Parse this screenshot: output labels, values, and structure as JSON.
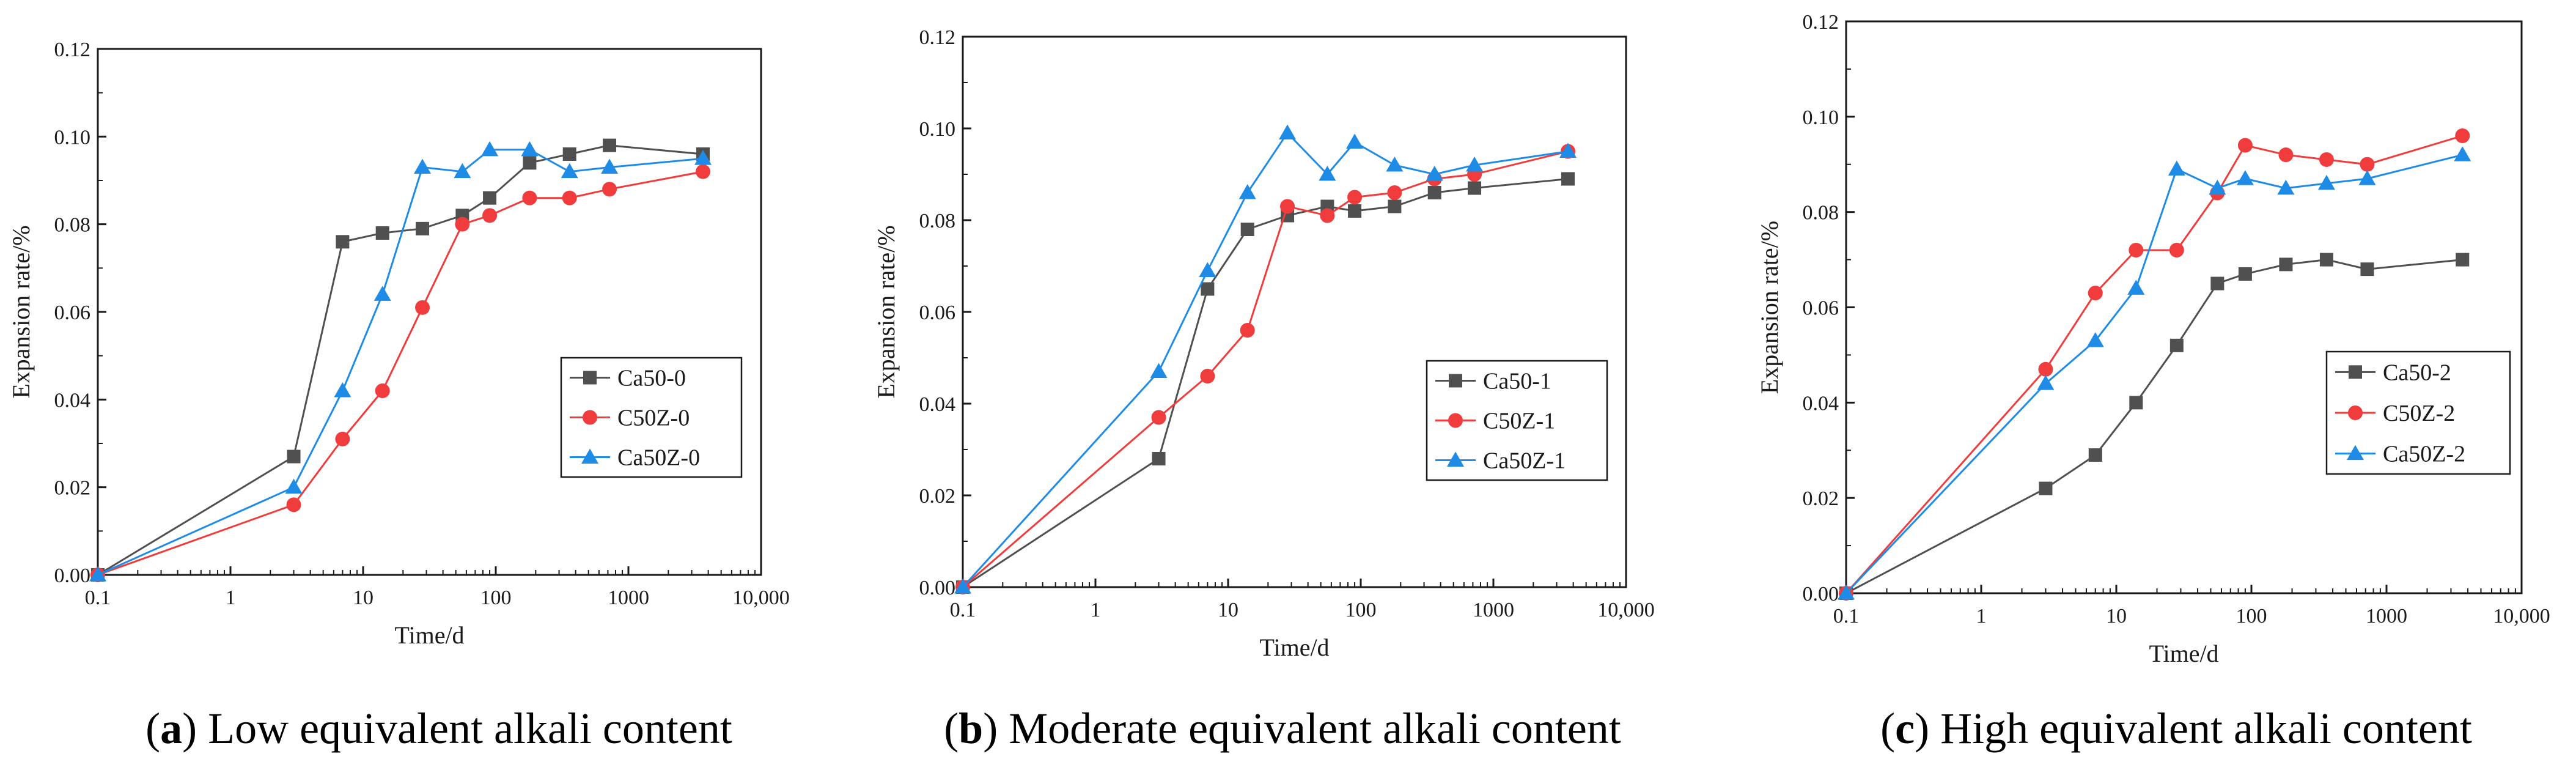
{
  "colors": {
    "series_1": "#505050",
    "series_2": "#f03c3c",
    "series_3": "#1e8ce6",
    "axis": "#1a1a1a"
  },
  "chart_data": [
    {
      "type": "line",
      "xscale": "log",
      "xlim": [
        0.1,
        10000
      ],
      "ylim": [
        0,
        0.12
      ],
      "xticks": [
        "0.1",
        "1",
        "10",
        "100",
        "1000",
        "10,000"
      ],
      "yticks": [
        "0.00",
        "0.02",
        "0.04",
        "0.06",
        "0.08",
        "0.10",
        "0.12"
      ],
      "xlabel": "Time/d",
      "ylabel": "Expansion rate/%",
      "legend_position": "center-right",
      "caption_letter": "a",
      "caption_text": "Low equivalent alkali content",
      "series": [
        {
          "name": "Ca50-0",
          "marker": "square",
          "x": [
            0.1,
            3,
            7,
            14,
            28,
            56,
            90,
            180,
            360,
            720,
            3650
          ],
          "y": [
            0,
            0.027,
            0.076,
            0.078,
            0.079,
            0.082,
            0.086,
            0.094,
            0.096,
            0.098,
            0.096
          ]
        },
        {
          "name": "C50Z-0",
          "marker": "circle",
          "x": [
            0.1,
            3,
            7,
            14,
            28,
            56,
            90,
            180,
            360,
            720,
            3650
          ],
          "y": [
            0,
            0.016,
            0.031,
            0.042,
            0.061,
            0.08,
            0.082,
            0.086,
            0.086,
            0.088,
            0.092
          ]
        },
        {
          "name": "Ca50Z-0",
          "marker": "triangle",
          "x": [
            0.1,
            3,
            7,
            14,
            28,
            56,
            90,
            180,
            360,
            720,
            3650
          ],
          "y": [
            0,
            0.02,
            0.042,
            0.064,
            0.093,
            0.092,
            0.097,
            0.097,
            0.092,
            0.093,
            0.095
          ]
        }
      ]
    },
    {
      "type": "line",
      "xscale": "log",
      "xlim": [
        0.1,
        10000
      ],
      "ylim": [
        0,
        0.12
      ],
      "xticks": [
        "0.1",
        "1",
        "10",
        "100",
        "1000",
        "10,000"
      ],
      "yticks": [
        "0.00",
        "0.02",
        "0.04",
        "0.06",
        "0.08",
        "0.10",
        "0.12"
      ],
      "xlabel": "Time/d",
      "ylabel": "Expansion rate/%",
      "legend_position": "lower-right",
      "caption_letter": "b",
      "caption_text": "Moderate equivalent alkali content",
      "series": [
        {
          "name": "Ca50-1",
          "marker": "square",
          "x": [
            0.1,
            3,
            7,
            14,
            28,
            56,
            90,
            180,
            360,
            720,
            3650
          ],
          "y": [
            0,
            0.028,
            0.065,
            0.078,
            0.081,
            0.083,
            0.082,
            0.083,
            0.086,
            0.087,
            0.089
          ]
        },
        {
          "name": "C50Z-1",
          "marker": "circle",
          "x": [
            0.1,
            3,
            7,
            14,
            28,
            56,
            90,
            180,
            360,
            720,
            3650
          ],
          "y": [
            0,
            0.037,
            0.046,
            0.056,
            0.083,
            0.081,
            0.085,
            0.086,
            0.089,
            0.09,
            0.095
          ]
        },
        {
          "name": "Ca50Z-1",
          "marker": "triangle",
          "x": [
            0.1,
            3,
            7,
            14,
            28,
            56,
            90,
            180,
            360,
            720,
            3650
          ],
          "y": [
            0,
            0.047,
            0.069,
            0.086,
            0.099,
            0.09,
            0.097,
            0.092,
            0.09,
            0.092,
            0.095
          ]
        }
      ]
    },
    {
      "type": "line",
      "xscale": "log",
      "xlim": [
        0.1,
        10000
      ],
      "ylim": [
        0,
        0.12
      ],
      "xticks": [
        "0.1",
        "1",
        "10",
        "100",
        "1000",
        "10,000"
      ],
      "yticks": [
        "0.00",
        "0.02",
        "0.04",
        "0.06",
        "0.08",
        "0.10",
        "0.12"
      ],
      "xlabel": "Time/d",
      "ylabel": "Expansion rate/%",
      "legend_position": "lower-right",
      "caption_letter": "c",
      "caption_text": "High equivalent alkali content",
      "series": [
        {
          "name": "Ca50-2",
          "marker": "square",
          "x": [
            0.1,
            3,
            7,
            14,
            28,
            56,
            90,
            180,
            360,
            720,
            3650
          ],
          "y": [
            0,
            0.022,
            0.029,
            0.04,
            0.052,
            0.065,
            0.067,
            0.069,
            0.07,
            0.068,
            0.07
          ]
        },
        {
          "name": "C50Z-2",
          "marker": "circle",
          "x": [
            0.1,
            3,
            7,
            14,
            28,
            56,
            90,
            180,
            360,
            720,
            3650
          ],
          "y": [
            0,
            0.047,
            0.063,
            0.072,
            0.072,
            0.084,
            0.094,
            0.092,
            0.091,
            0.09,
            0.096
          ]
        },
        {
          "name": "Ca50Z-2",
          "marker": "triangle",
          "x": [
            0.1,
            3,
            7,
            14,
            28,
            56,
            90,
            180,
            360,
            720,
            3650
          ],
          "y": [
            0,
            0.044,
            0.053,
            0.064,
            0.089,
            0.085,
            0.087,
            0.085,
            0.086,
            0.087,
            0.092
          ]
        }
      ]
    }
  ]
}
